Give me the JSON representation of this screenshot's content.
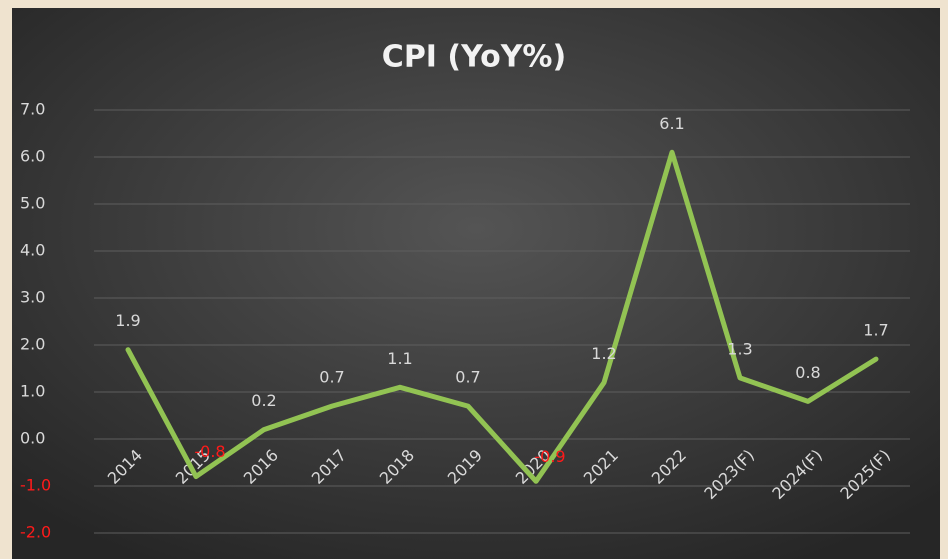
{
  "chart_data": {
    "type": "line",
    "title": "CPI (YoY%)",
    "categories": [
      "2014",
      "2015",
      "2016",
      "2017",
      "2018",
      "2019",
      "2020",
      "2021",
      "2022",
      "2023(F)",
      "2024(F)",
      "2025(F)"
    ],
    "series": [
      {
        "name": "CPI",
        "color": "#92c353",
        "values": [
          1.9,
          -0.8,
          0.2,
          0.7,
          1.1,
          0.7,
          -0.9,
          1.2,
          6.1,
          1.3,
          0.8,
          1.7
        ]
      }
    ],
    "ylim": [
      -2,
      7
    ],
    "yticks": [
      {
        "value": -2,
        "label": "-2.0"
      },
      {
        "value": -1,
        "label": "-1.0"
      },
      {
        "value": 0,
        "label": "0.0"
      },
      {
        "value": 1,
        "label": "1.0"
      },
      {
        "value": 2,
        "label": "2.0"
      },
      {
        "value": 3,
        "label": "3.0"
      },
      {
        "value": 4,
        "label": "4.0"
      },
      {
        "value": 5,
        "label": "5.0"
      },
      {
        "value": 6,
        "label": "6.0"
      },
      {
        "value": 7,
        "label": "7.0"
      }
    ],
    "grid": true,
    "negative_color": "#ff1a1a"
  }
}
